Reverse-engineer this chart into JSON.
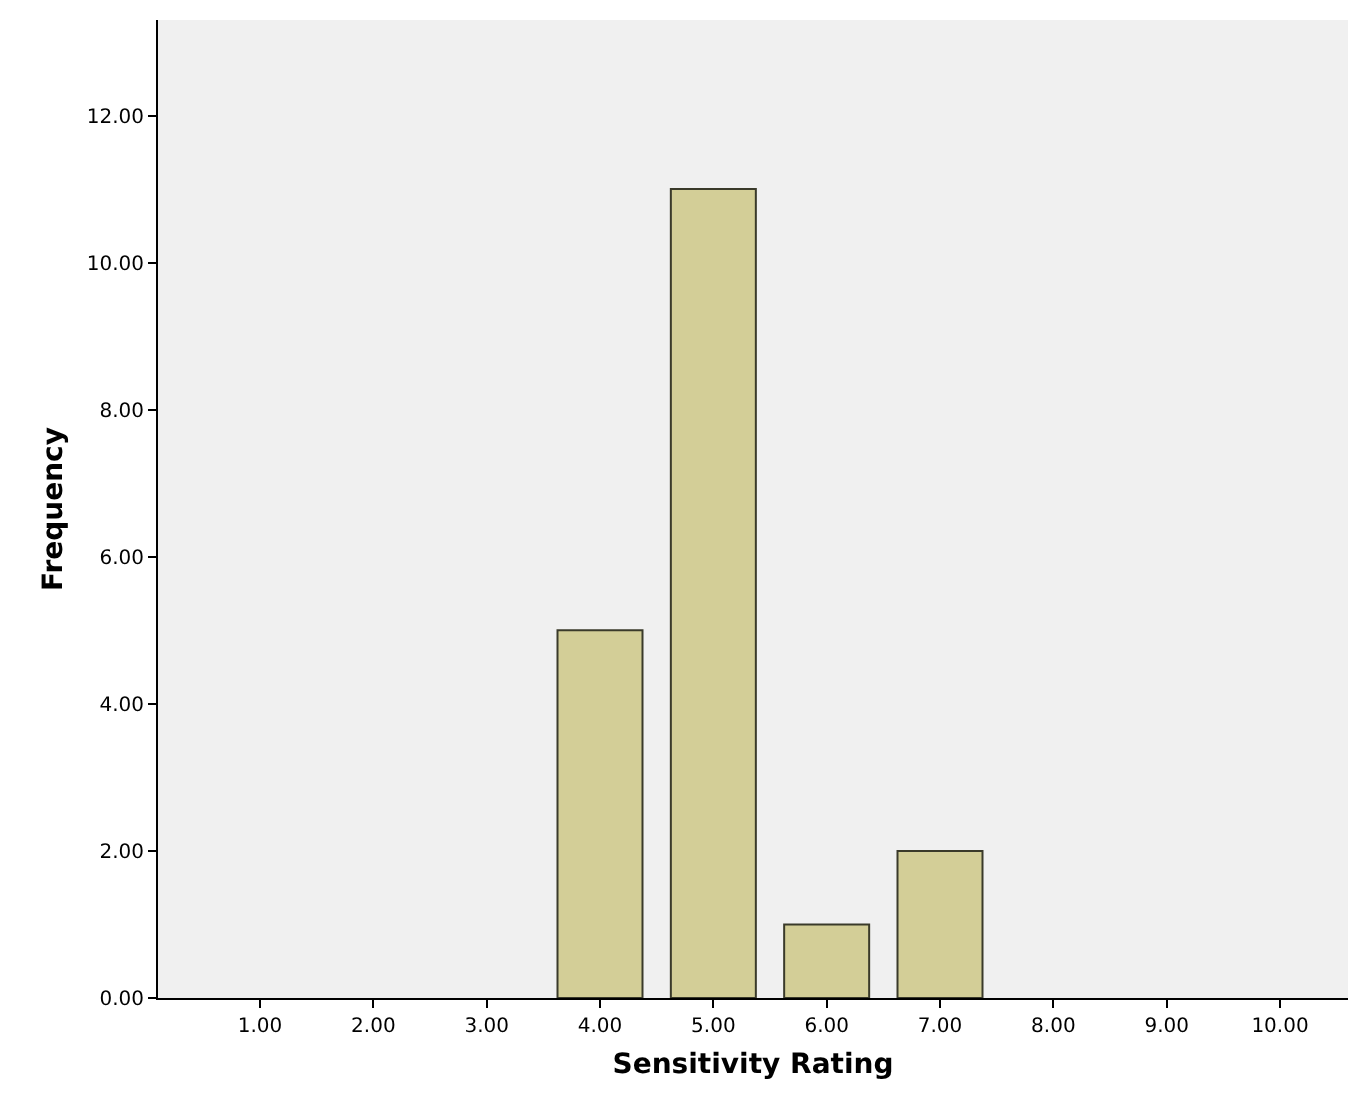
{
  "chart_data": {
    "type": "bar",
    "xlabel": "Sensitivity Rating",
    "ylabel": "Frequency",
    "categories": [
      "1.00",
      "2.00",
      "3.00",
      "4.00",
      "5.00",
      "6.00",
      "7.00",
      "8.00",
      "9.00",
      "10.00"
    ],
    "values": [
      0,
      0,
      0,
      5,
      11,
      1,
      2,
      0,
      0,
      0
    ],
    "color": "#d3ce97",
    "ylim": [
      0,
      13.3
    ],
    "yticks": [
      {
        "value": 0,
        "label": "0.00"
      },
      {
        "value": 2,
        "label": "2.00"
      },
      {
        "value": 4,
        "label": "4.00"
      },
      {
        "value": 6,
        "label": "6.00"
      },
      {
        "value": 8,
        "label": "8.00"
      },
      {
        "value": 10,
        "label": "10.00"
      },
      {
        "value": 12,
        "label": "12.00"
      }
    ],
    "grid": false
  }
}
